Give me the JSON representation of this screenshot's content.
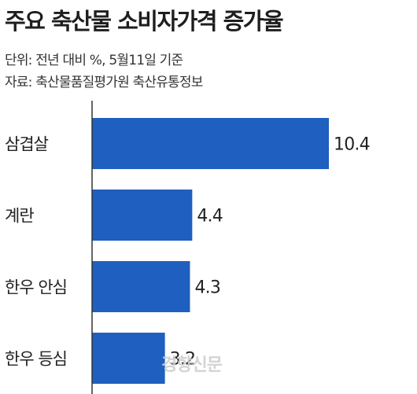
{
  "title": "주요 축산물 소비자가격 증가율",
  "unit_note": "단위: 전년 대비 %, 5월11일 기준",
  "source_note": "자료: 축산물품질평가원 축산유통정보",
  "watermark": "경향신문",
  "colors": {
    "bar": "#1f5fbf",
    "axis": "#333333"
  },
  "chart_data": {
    "type": "bar",
    "orientation": "horizontal",
    "categories": [
      "삼겹살",
      "계란",
      "한우 안심",
      "한우 등심"
    ],
    "values": [
      10.4,
      4.4,
      4.3,
      3.2
    ],
    "value_labels": [
      "10.4",
      "4.4",
      "4.3",
      "3.2"
    ],
    "xlim": [
      0,
      10.4
    ],
    "grid": false,
    "legend": "none"
  }
}
